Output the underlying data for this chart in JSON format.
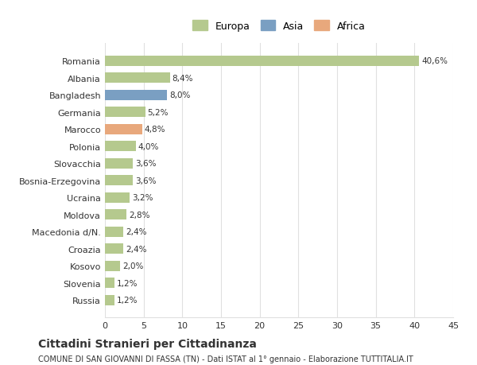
{
  "categories": [
    "Russia",
    "Slovenia",
    "Kosovo",
    "Croazia",
    "Macedonia d/N.",
    "Moldova",
    "Ucraina",
    "Bosnia-Erzegovina",
    "Slovacchia",
    "Polonia",
    "Marocco",
    "Germania",
    "Bangladesh",
    "Albania",
    "Romania"
  ],
  "values": [
    1.2,
    1.2,
    2.0,
    2.4,
    2.4,
    2.8,
    3.2,
    3.6,
    3.6,
    4.0,
    4.8,
    5.2,
    8.0,
    8.4,
    40.6
  ],
  "labels": [
    "1,2%",
    "1,2%",
    "2,0%",
    "2,4%",
    "2,4%",
    "2,8%",
    "3,2%",
    "3,6%",
    "3,6%",
    "4,0%",
    "4,8%",
    "5,2%",
    "8,0%",
    "8,4%",
    "40,6%"
  ],
  "colors": [
    "#b5c98e",
    "#b5c98e",
    "#b5c98e",
    "#b5c98e",
    "#b5c98e",
    "#b5c98e",
    "#b5c98e",
    "#b5c98e",
    "#b5c98e",
    "#b5c98e",
    "#e8a87c",
    "#b5c98e",
    "#7a9fc2",
    "#b5c98e",
    "#b5c98e"
  ],
  "continent": [
    "Europa",
    "Europa",
    "Europa",
    "Europa",
    "Europa",
    "Europa",
    "Europa",
    "Europa",
    "Europa",
    "Europa",
    "Africa",
    "Europa",
    "Asia",
    "Europa",
    "Europa"
  ],
  "legend_labels": [
    "Europa",
    "Asia",
    "Africa"
  ],
  "legend_colors": [
    "#b5c98e",
    "#7a9fc2",
    "#e8a87c"
  ],
  "title": "Cittadini Stranieri per Cittadinanza",
  "subtitle": "COMUNE DI SAN GIOVANNI DI FASSA (TN) - Dati ISTAT al 1° gennaio - Elaborazione TUTTITALIA.IT",
  "xlim": [
    0,
    45
  ],
  "xticks": [
    0,
    5,
    10,
    15,
    20,
    25,
    30,
    35,
    40,
    45
  ],
  "bg_color": "#ffffff",
  "grid_color": "#e0e0e0",
  "bar_height": 0.6,
  "text_color": "#333333"
}
